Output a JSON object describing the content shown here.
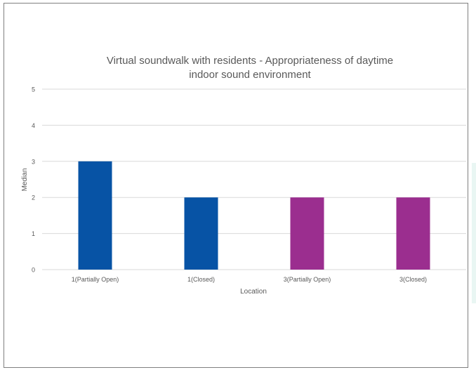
{
  "chart_data": {
    "type": "bar",
    "title_lines": [
      "Virtual soundwalk with residents - Appropriateness of daytime",
      "indoor sound environment"
    ],
    "xlabel": "Location",
    "ylabel": "Median",
    "categories": [
      "1(Partially Open)",
      "1(Closed)",
      "3(Partially Open)",
      "3(Closed)"
    ],
    "values": [
      3,
      2,
      2,
      2
    ],
    "bar_colors": [
      "#0753a5",
      "#0753a5",
      "#9b2e8f",
      "#9b2e8f"
    ],
    "ylim": [
      0,
      5
    ],
    "yticks": [
      "0",
      "1",
      "2",
      "3",
      "4",
      "5"
    ],
    "grid": true,
    "legend": "none"
  },
  "colors": {
    "gridline": "#d9d9d9",
    "axis_text": "#595959",
    "title_text": "#595959"
  }
}
